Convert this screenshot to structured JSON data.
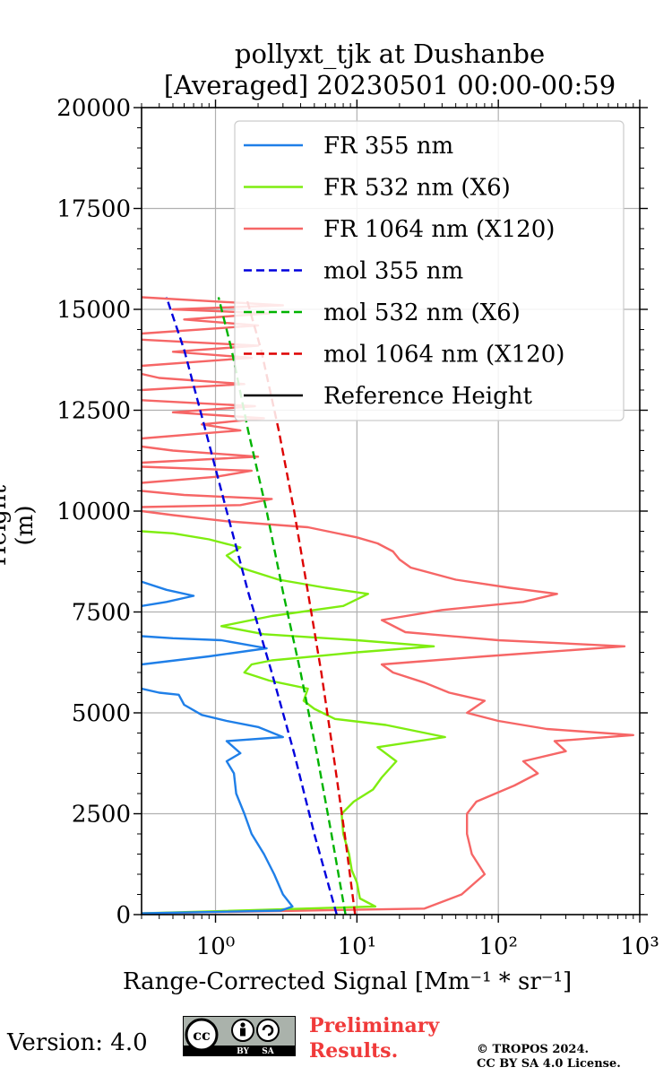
{
  "header": {
    "title_line1": "pollyxt_tjk at Dushanbe",
    "title_line2": "[Averaged] 20230501 00:00-00:59"
  },
  "footer": {
    "version": "Version: 4.0",
    "preliminary_line1": "Preliminary",
    "preliminary_line2": "Results.",
    "copyright_line1": "© TROPOS 2024.",
    "copyright_line2": "CC BY SA 4.0 License.",
    "license_badge": {
      "cc": "cc",
      "by": "BY",
      "sa": "SA"
    }
  },
  "chart_data": {
    "type": "line",
    "title": "pollyxt_tjk at Dushanbe [Averaged] 20230501 00:00-00:59",
    "xlabel": "Range-Corrected Signal [Mm⁻¹ * sr⁻¹]",
    "ylabel": "Height (m)",
    "xscale": "log",
    "xlim": [
      0.3,
      1000
    ],
    "ylim": [
      0,
      20000
    ],
    "xticks": [
      1,
      10,
      100,
      1000
    ],
    "xtick_labels": [
      "10⁰",
      "10¹",
      "10²",
      "10³"
    ],
    "yticks": [
      0,
      2500,
      5000,
      7500,
      10000,
      12500,
      15000,
      17500,
      20000
    ],
    "ytick_labels": [
      "0",
      "2500",
      "5000",
      "7500",
      "10000",
      "12500",
      "15000",
      "17500",
      "20000"
    ],
    "grid": true,
    "legend_position": "top-right",
    "series": [
      {
        "name": "FR 355 nm",
        "color": "#1f7fe8",
        "style": "solid",
        "points": [
          [
            0.3,
            30
          ],
          [
            2.9,
            100
          ],
          [
            3.5,
            200
          ],
          [
            3.0,
            500
          ],
          [
            2.6,
            1000
          ],
          [
            2.2,
            1500
          ],
          [
            1.8,
            2000
          ],
          [
            1.6,
            2500
          ],
          [
            1.4,
            3000
          ],
          [
            1.35,
            3500
          ],
          [
            1.2,
            3800
          ],
          [
            1.5,
            4000
          ],
          [
            1.2,
            4300
          ],
          [
            3.0,
            4400
          ],
          [
            2.0,
            4650
          ],
          [
            1.2,
            4800
          ],
          [
            0.8,
            4950
          ],
          [
            0.6,
            5200
          ],
          [
            0.55,
            5450
          ],
          [
            0.4,
            5500
          ],
          [
            0.3,
            5600
          ]
        ],
        "extra_segments": [
          [
            [
              0.3,
              6200
            ],
            [
              0.9,
              6400
            ],
            [
              2.3,
              6600
            ],
            [
              1.1,
              6800
            ],
            [
              0.5,
              6850
            ],
            [
              0.3,
              6900
            ]
          ],
          [
            [
              0.3,
              7650
            ],
            [
              0.45,
              7750
            ],
            [
              0.7,
              7900
            ],
            [
              0.45,
              8050
            ],
            [
              0.3,
              8250
            ]
          ]
        ]
      },
      {
        "name": "FR 532 nm (X6)",
        "color": "#7fed10",
        "style": "solid",
        "points": [
          [
            0.3,
            30
          ],
          [
            13.5,
            200
          ],
          [
            10.5,
            400
          ],
          [
            10.0,
            800
          ],
          [
            9.2,
            1100
          ],
          [
            8.8,
            1500
          ],
          [
            8.0,
            2000
          ],
          [
            7.8,
            2500
          ],
          [
            9.5,
            2800
          ],
          [
            13,
            3100
          ],
          [
            15,
            3400
          ],
          [
            19,
            3800
          ],
          [
            14,
            4150
          ],
          [
            42,
            4400
          ],
          [
            16,
            4700
          ],
          [
            7,
            4850
          ],
          [
            5,
            5100
          ],
          [
            4.2,
            5300
          ],
          [
            4.5,
            5600
          ],
          [
            2.4,
            5800
          ],
          [
            1.6,
            6000
          ],
          [
            1.8,
            6200
          ],
          [
            2.5,
            6300
          ],
          [
            10,
            6500
          ],
          [
            35,
            6650
          ],
          [
            10,
            6800
          ],
          [
            2.2,
            6950
          ],
          [
            1.1,
            7150
          ],
          [
            2.5,
            7400
          ],
          [
            8,
            7650
          ],
          [
            12,
            7950
          ],
          [
            6,
            8100
          ],
          [
            2.8,
            8300
          ],
          [
            1.5,
            8600
          ],
          [
            1.2,
            8900
          ],
          [
            1.5,
            9100
          ],
          [
            0.9,
            9300
          ],
          [
            0.5,
            9450
          ],
          [
            0.3,
            9500
          ]
        ]
      },
      {
        "name": "FR 1064 nm (X120)",
        "color": "#f66666",
        "style": "solid",
        "points": [
          [
            0.3,
            30
          ],
          [
            30,
            150
          ],
          [
            55,
            500
          ],
          [
            80,
            1000
          ],
          [
            65,
            1500
          ],
          [
            60,
            2000
          ],
          [
            60,
            2500
          ],
          [
            70,
            2800
          ],
          [
            130,
            3200
          ],
          [
            190,
            3500
          ],
          [
            150,
            3800
          ],
          [
            300,
            4050
          ],
          [
            250,
            4300
          ],
          [
            900,
            4450
          ],
          [
            220,
            4600
          ],
          [
            100,
            4800
          ],
          [
            60,
            5000
          ],
          [
            80,
            5300
          ],
          [
            45,
            5500
          ],
          [
            30,
            5750
          ],
          [
            18,
            6000
          ],
          [
            15,
            6200
          ],
          [
            80,
            6400
          ],
          [
            780,
            6650
          ],
          [
            100,
            6800
          ],
          [
            22,
            7000
          ],
          [
            15,
            7300
          ],
          [
            40,
            7550
          ],
          [
            150,
            7750
          ],
          [
            260,
            7950
          ],
          [
            120,
            8100
          ],
          [
            50,
            8300
          ],
          [
            24,
            8600
          ],
          [
            20,
            8800
          ],
          [
            18,
            9000
          ],
          [
            14,
            9200
          ],
          [
            10,
            9350
          ],
          [
            4.5,
            9600
          ],
          [
            1.2,
            9750
          ],
          [
            0.5,
            9900
          ],
          [
            0.3,
            10000
          ]
        ],
        "extra_segments": [
          [
            [
              0.3,
              10100
            ],
            [
              1.5,
              10150
            ],
            [
              2.5,
              10300
            ],
            [
              0.6,
              10400
            ],
            [
              0.3,
              10500
            ]
          ],
          [
            [
              0.3,
              10700
            ],
            [
              1.0,
              10850
            ],
            [
              1.8,
              11000
            ],
            [
              0.3,
              11100
            ]
          ],
          [
            [
              0.3,
              11200
            ],
            [
              2.0,
              11350
            ],
            [
              0.5,
              11500
            ],
            [
              0.3,
              11600
            ]
          ],
          [
            [
              0.3,
              11800
            ],
            [
              1.5,
              12000
            ],
            [
              0.8,
              12150
            ],
            [
              2.2,
              12300
            ],
            [
              0.5,
              12450
            ],
            [
              1.9,
              12600
            ],
            [
              0.3,
              12750
            ]
          ],
          [
            [
              0.3,
              13000
            ],
            [
              1.6,
              13150
            ],
            [
              0.4,
              13300
            ],
            [
              0.3,
              13400
            ]
          ],
          [
            [
              0.3,
              13600
            ],
            [
              1.8,
              13800
            ],
            [
              0.5,
              13950
            ],
            [
              2.0,
              14100
            ],
            [
              0.3,
              14250
            ]
          ],
          [
            [
              0.3,
              14400
            ],
            [
              2.0,
              14600
            ],
            [
              0.6,
              14750
            ],
            [
              2.4,
              14900
            ],
            [
              0.5,
              15000
            ],
            [
              3.0,
              15100
            ],
            [
              0.3,
              15300
            ]
          ]
        ]
      },
      {
        "name": "mol 355 nm",
        "color": "#0000dd",
        "style": "dashed",
        "points": [
          [
            7.2,
            0
          ],
          [
            5.0,
            2000
          ],
          [
            3.6,
            4000
          ],
          [
            2.5,
            6000
          ],
          [
            1.7,
            8000
          ],
          [
            1.2,
            10000
          ],
          [
            0.85,
            12000
          ],
          [
            0.6,
            14000
          ],
          [
            0.45,
            15300
          ]
        ]
      },
      {
        "name": "mol 532 nm (X6)",
        "color": "#00b300",
        "style": "dashed",
        "points": [
          [
            8.3,
            0
          ],
          [
            6.6,
            2000
          ],
          [
            5.2,
            4000
          ],
          [
            4.0,
            6000
          ],
          [
            3.0,
            8000
          ],
          [
            2.3,
            10000
          ],
          [
            1.7,
            12000
          ],
          [
            1.3,
            14000
          ],
          [
            1.05,
            15300
          ]
        ]
      },
      {
        "name": "mol 1064 nm (X120)",
        "color": "#dd0000",
        "style": "dashed",
        "points": [
          [
            9.7,
            0
          ],
          [
            8.2,
            2000
          ],
          [
            6.8,
            4000
          ],
          [
            5.6,
            6000
          ],
          [
            4.5,
            8000
          ],
          [
            3.6,
            10000
          ],
          [
            2.8,
            12000
          ],
          [
            2.1,
            14000
          ],
          [
            1.65,
            15300
          ]
        ]
      },
      {
        "name": "Reference Height",
        "color": "#000000",
        "style": "solid",
        "points": []
      }
    ]
  }
}
